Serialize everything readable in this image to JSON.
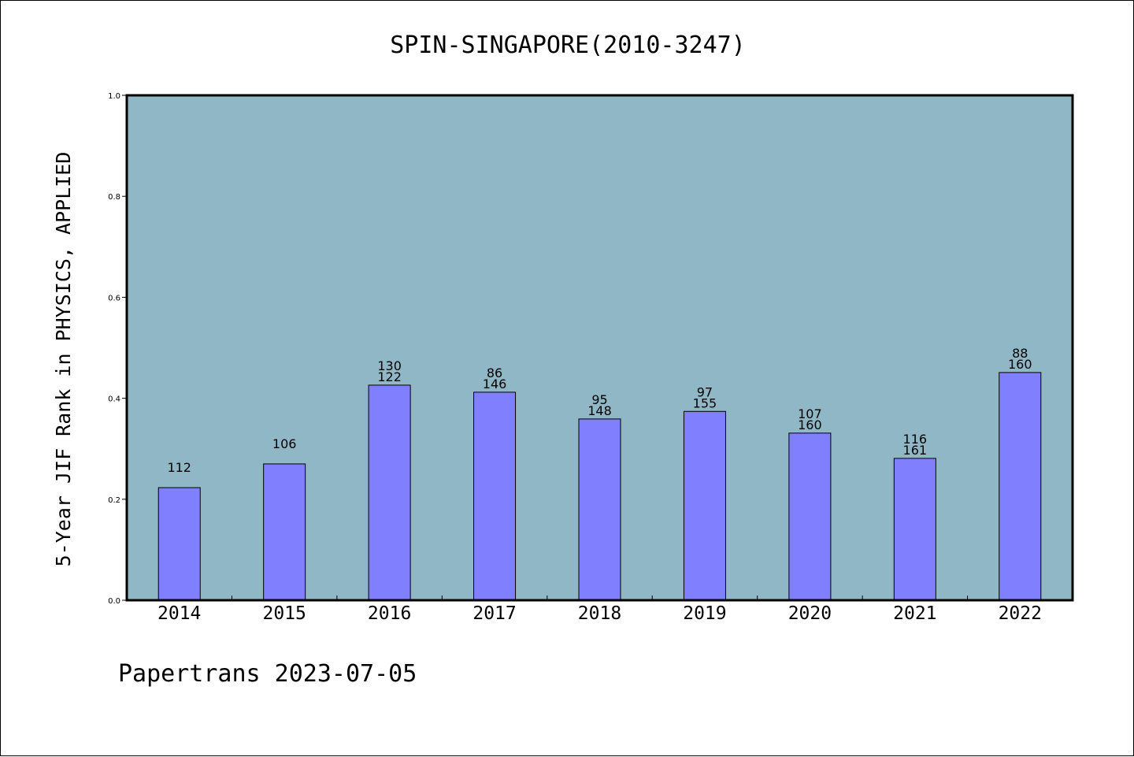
{
  "chart_data": {
    "type": "bar",
    "title": "SPIN-SINGAPORE(2010-3247)",
    "xlabel": "",
    "ylabel": "5-Year JIF Rank in PHYSICS, APPLIED",
    "categories": [
      "2014",
      "2015",
      "2016",
      "2017",
      "2018",
      "2019",
      "2020",
      "2021",
      "2022"
    ],
    "values": [
      0.223,
      0.27,
      0.426,
      0.412,
      0.359,
      0.374,
      0.331,
      0.281,
      0.451
    ],
    "labels_top": [
      "",
      "",
      "130",
      "86",
      "95",
      "97",
      "107",
      "116",
      "88"
    ],
    "labels_bottom": [
      "112",
      "106",
      "122",
      "146",
      "148",
      "155",
      "160",
      "161",
      "160"
    ],
    "ylim": [
      0,
      1
    ],
    "yticks": [
      "0.0",
      "0.2",
      "0.4",
      "0.6",
      "0.8",
      "1.0"
    ],
    "grid": false,
    "colors": {
      "plot_background": "#8fb7c5",
      "bar_fill": "#8080ff",
      "bar_stroke": "#000000"
    }
  },
  "footer": "Papertrans 2023-07-05"
}
